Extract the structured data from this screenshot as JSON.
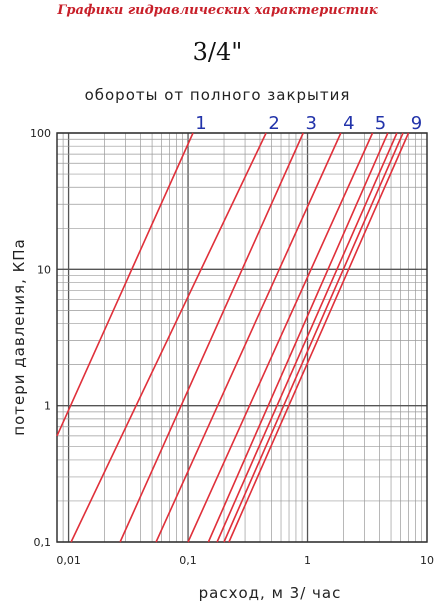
{
  "header": {
    "title": "Графики гидравлических характеристик",
    "size": "3/4\""
  },
  "chart_data": {
    "type": "line",
    "title": "обороты от полного закрытия",
    "xlabel": "расход, м 3/ час",
    "ylabel": "потери давления, КПа",
    "xscale": "log",
    "yscale": "log",
    "xlim": [
      0.008,
      10
    ],
    "ylim": [
      0.1,
      100
    ],
    "x_ticks": [
      "0,01",
      "0,1",
      "1",
      "10"
    ],
    "y_ticks": [
      "0,1",
      "1",
      "10",
      "100"
    ],
    "grid": true,
    "line_color": "#e0303a",
    "label_color": "#2233aa",
    "series": [
      {
        "name": "1",
        "points": [
          [
            0.008,
            0.6
          ],
          [
            0.11,
            100
          ]
        ]
      },
      {
        "name": "2",
        "points": [
          [
            0.0105,
            0.1
          ],
          [
            0.45,
            100
          ]
        ]
      },
      {
        "name": "3",
        "points": [
          [
            0.027,
            0.1
          ],
          [
            0.92,
            100
          ]
        ]
      },
      {
        "name": "4",
        "points": [
          [
            0.054,
            0.1
          ],
          [
            1.9,
            100
          ]
        ]
      },
      {
        "name": "5",
        "points": [
          [
            0.1,
            0.1
          ],
          [
            3.5,
            100
          ]
        ]
      },
      {
        "name": "",
        "points": [
          [
            0.148,
            0.1
          ],
          [
            4.7,
            100
          ]
        ]
      },
      {
        "name": "",
        "points": [
          [
            0.175,
            0.1
          ],
          [
            5.6,
            100
          ]
        ]
      },
      {
        "name": "",
        "points": [
          [
            0.2,
            0.1
          ],
          [
            6.3,
            100
          ]
        ]
      },
      {
        "name": "9",
        "points": [
          [
            0.22,
            0.1
          ],
          [
            7.0,
            100
          ]
        ]
      }
    ]
  }
}
